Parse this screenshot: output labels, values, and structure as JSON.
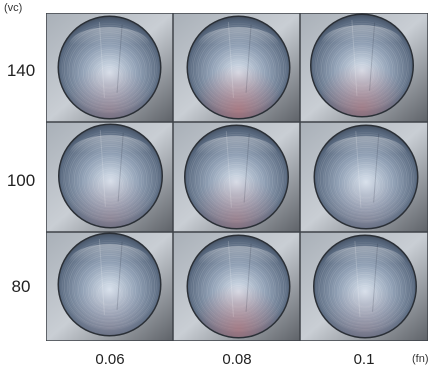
{
  "axes": {
    "y_unit": "(vc)",
    "x_unit": "(fn)",
    "rows": [
      "140",
      "100",
      "80"
    ],
    "cols": [
      "0.06",
      "0.08",
      "0.1"
    ]
  },
  "palette": {
    "plate": "#a9b0b8",
    "plate_dark": "#5e6268",
    "bore_light": "#d9e3ee",
    "bore_mid": "#8f9fb4",
    "bore_dark": "#323a46",
    "copper_tint": "#c76a6a"
  }
}
